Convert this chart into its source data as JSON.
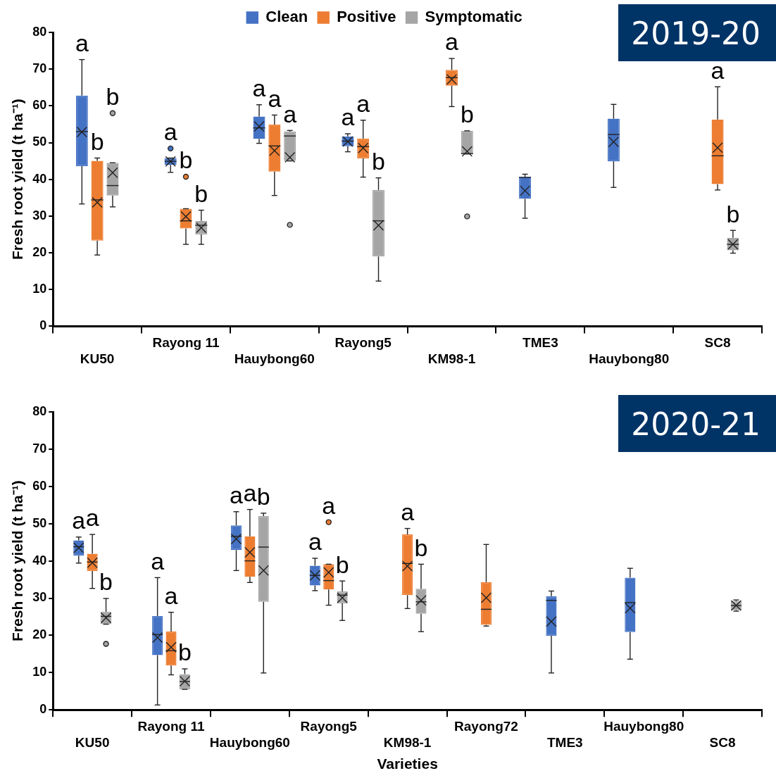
{
  "chart_data": [
    {
      "type": "box",
      "title": "2019-20",
      "ylabel": "Fresh root yield (t ha⁻¹)",
      "categories": [
        "KU50",
        "Rayong 11",
        "Hauybong60",
        "Rayong5",
        "KM98-1",
        "TME3",
        "Hauybong80",
        "SC8"
      ],
      "ylim": [
        0,
        80
      ],
      "yticks": [
        0,
        10,
        20,
        30,
        40,
        50,
        60,
        70,
        80
      ],
      "legend": "top",
      "series": [
        {
          "name": "Clean",
          "color": "#4472c4",
          "boxes": [
            {
              "low": 33.3,
              "q1": 43.6,
              "median": 53,
              "q3": 62.8,
              "high": 72.6,
              "mean": 52.9
            },
            {
              "low": 41.9,
              "q1": 43.9,
              "median": 44.9,
              "q3": 45.8,
              "high": 45.8,
              "mean": 44.9,
              "outliers": [
                48.4
              ]
            },
            {
              "low": 49.8,
              "q1": 51,
              "median": 54,
              "q3": 57.1,
              "high": 60.3,
              "mean": 54.4
            },
            {
              "low": 47.5,
              "q1": 49,
              "median": 50.4,
              "q3": 51.7,
              "high": 52.4,
              "mean": 50.3
            },
            null,
            {
              "low": 29.4,
              "q1": 34.7,
              "median": 40.5,
              "q3": 40.7,
              "high": 41.4,
              "mean": 36.9
            },
            {
              "low": 37.8,
              "q1": 44.9,
              "median": 52.2,
              "q3": 56.5,
              "high": 60.4,
              "mean": 50.2
            },
            null
          ]
        },
        {
          "name": "Positive",
          "color": "#ed7d31",
          "boxes": [
            {
              "low": 19.4,
              "q1": 23.3,
              "median": 34.4,
              "q3": 45,
              "high": 45.8,
              "mean": 33.7
            },
            {
              "low": 22.3,
              "q1": 26.6,
              "median": 28.7,
              "q3": 32,
              "high": 32,
              "mean": 29.9,
              "outliers": [
                40.7
              ]
            },
            {
              "low": 35.6,
              "q1": 42.1,
              "median": 49.1,
              "q3": 54.9,
              "high": 57.5,
              "mean": 47.8
            },
            {
              "low": 40.6,
              "q1": 45.7,
              "median": 48.9,
              "q3": 51.1,
              "high": 56.1,
              "mean": 48.5
            },
            {
              "low": 59.8,
              "q1": 65.5,
              "median": 67.7,
              "q3": 69.8,
              "high": 72.9,
              "mean": 67.2
            },
            null,
            null,
            {
              "low": 37.1,
              "q1": 38.7,
              "median": 46.4,
              "q3": 56.3,
              "high": 65.2,
              "mean": 48.6
            }
          ]
        },
        {
          "name": "Symptomatic",
          "color": "#a5a5a5",
          "boxes": [
            {
              "low": 32.5,
              "q1": 35.6,
              "median": 38.3,
              "q3": 44.5,
              "high": 44.5,
              "mean": 41.8,
              "outliers": [
                58
              ]
            },
            {
              "low": 22.3,
              "q1": 25,
              "median": 27.5,
              "q3": 28.7,
              "high": 31.6,
              "mean": 26.8
            },
            {
              "low": 45,
              "q1": 45,
              "median": 51.8,
              "q3": 53,
              "high": 53.3,
              "mean": 46,
              "outliers": [
                27.6
              ]
            },
            {
              "low": 12.3,
              "q1": 19,
              "median": 28.7,
              "q3": 37.1,
              "high": 40.4,
              "mean": 27.5
            },
            {
              "low": 46.9,
              "q1": 46.9,
              "median": 47,
              "q3": 53.2,
              "high": 53.2,
              "mean": 47.6,
              "outliers": [
                29.9
              ]
            },
            null,
            null,
            {
              "low": 19.9,
              "q1": 20.7,
              "median": 22.3,
              "q3": 24.1,
              "high": 26.1,
              "mean": 22.3
            }
          ]
        }
      ],
      "annotations": [
        "a",
        "b",
        "b",
        "a",
        "b",
        "b",
        "a",
        "a",
        "a",
        "a",
        "a",
        "b",
        "a",
        "b",
        "a",
        "b"
      ]
    },
    {
      "type": "box",
      "title": "2020-21",
      "xlabel": "Varieties",
      "ylabel": "Fresh root yield (t ha⁻¹)",
      "categories": [
        "KU50",
        "Rayong 11",
        "Hauybong60",
        "Rayong5",
        "KM98-1",
        "Rayong72",
        "TME3",
        "Hauybong80",
        "SC8"
      ],
      "ylim": [
        0,
        80
      ],
      "yticks": [
        0,
        10,
        20,
        30,
        40,
        50,
        60,
        70,
        80
      ],
      "series": [
        {
          "color": "#4472c4",
          "boxes": [
            {
              "low": 39.4,
              "q1": 41.4,
              "median": 43.8,
              "q3": 45.5,
              "high": 46.4,
              "mean": 43.5
            },
            {
              "low": 1.3,
              "q1": 14.7,
              "median": 20.2,
              "q3": 25.2,
              "high": 35.5,
              "mean": 19.4
            },
            {
              "low": 37.4,
              "q1": 42.9,
              "median": 46.6,
              "q3": 49.5,
              "high": 53.2,
              "mean": 45.9
            },
            {
              "low": 32,
              "q1": 33.4,
              "median": 36.1,
              "q3": 38.7,
              "high": 40.7,
              "mean": 36.1
            },
            null,
            null,
            {
              "low": 9.9,
              "q1": 19.9,
              "median": 29.4,
              "q3": 30.5,
              "high": 31.9,
              "mean": 23.7
            },
            {
              "low": 13.6,
              "q1": 20.9,
              "median": 28.8,
              "q3": 35.5,
              "high": 38,
              "mean": 27.3
            },
            null
          ]
        },
        {
          "color": "#ed7d31",
          "boxes": [
            {
              "low": 32.6,
              "q1": 37.3,
              "median": 39.7,
              "q3": 41.9,
              "high": 47.1,
              "mean": 39.5
            },
            {
              "low": 9.4,
              "q1": 11.9,
              "median": 15.9,
              "q3": 21,
              "high": 26.2,
              "mean": 16.8
            },
            {
              "low": 34.2,
              "q1": 35.7,
              "median": 40,
              "q3": 46.6,
              "high": 53.8,
              "mean": 42.3
            },
            {
              "low": 28.1,
              "q1": 32.3,
              "median": 34.7,
              "q3": 39.1,
              "high": 39.1,
              "mean": 36.9,
              "outliers": [
                50.4
              ]
            },
            {
              "low": 27.2,
              "q1": 30.8,
              "median": 39.3,
              "q3": 47.1,
              "high": 48.7,
              "mean": 38.6
            },
            {
              "low": 22.5,
              "q1": 22.8,
              "median": 27,
              "q3": 34.3,
              "high": 44.4,
              "mean": 30.1
            },
            null,
            null,
            null
          ]
        },
        {
          "color": "#a5a5a5",
          "boxes": [
            {
              "low": 23,
              "q1": 23,
              "median": 25.1,
              "q3": 26.3,
              "high": 29.9,
              "mean": 24.7,
              "outliers": [
                17.7
              ]
            },
            {
              "low": 5.5,
              "q1": 5.5,
              "median": 7.6,
              "q3": 9.6,
              "high": 11,
              "mean": 7.7
            },
            {
              "low": 9.9,
              "q1": 29,
              "median": 43.7,
              "q3": 52,
              "high": 52.8,
              "mean": 37.4
            },
            {
              "low": 24,
              "q1": 28.6,
              "median": 30.8,
              "q3": 31.8,
              "high": 34.6,
              "mean": 30.1
            },
            {
              "low": 21,
              "q1": 25.8,
              "median": 29,
              "q3": 32.5,
              "high": 39.1,
              "mean": 29.4
            },
            null,
            null,
            null,
            {
              "low": 26.5,
              "q1": 26.8,
              "median": 28,
              "q3": 29.2,
              "high": 29.5,
              "mean": 28
            }
          ]
        }
      ],
      "annotations": [
        "a",
        "a",
        "b",
        "a",
        "a",
        "b",
        "a",
        "a",
        "b",
        "a",
        "a",
        "b",
        "a",
        "b"
      ]
    }
  ]
}
